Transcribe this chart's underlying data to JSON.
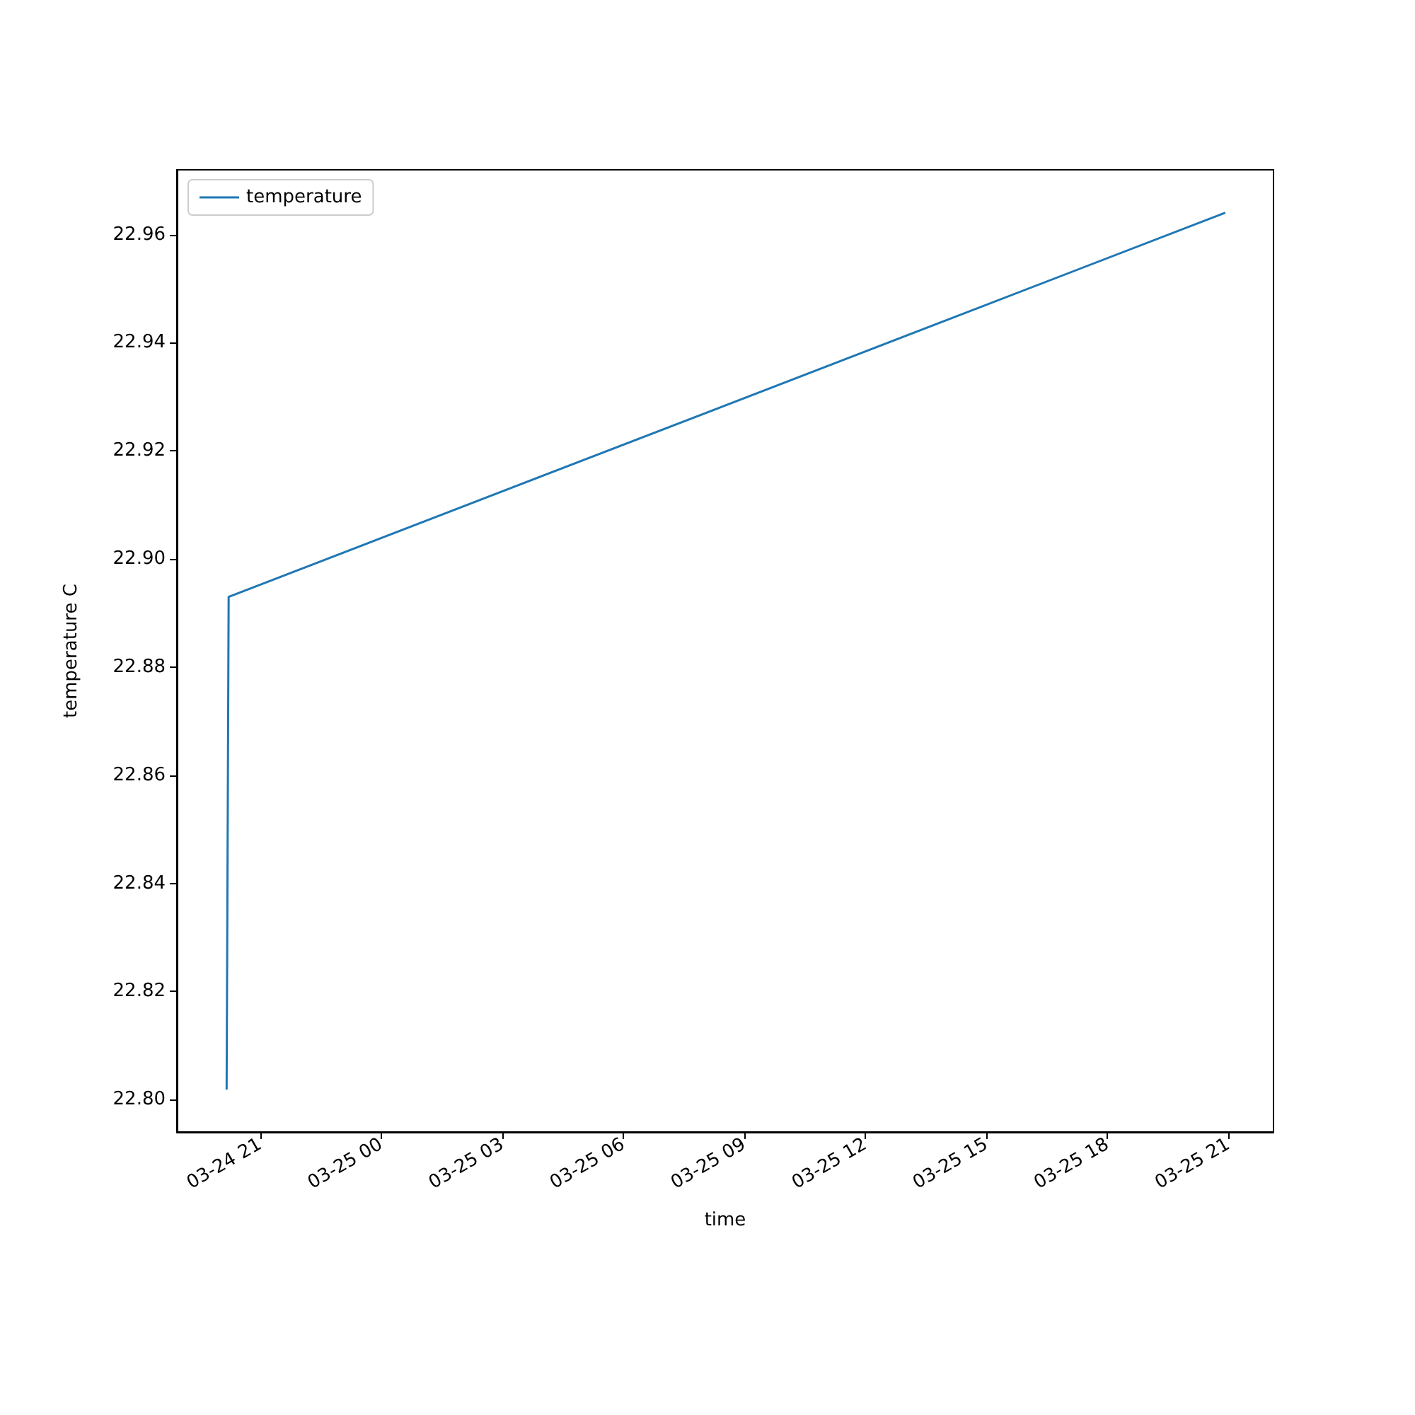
{
  "chart_data": {
    "type": "line",
    "xlabel": "time",
    "ylabel": "temperature C",
    "series": [
      {
        "name": "temperature",
        "color": "#1f77b4",
        "x": [
          "--03-24T20:10",
          "--03-24T20:13",
          "--03-25T20:54"
        ],
        "values": [
          22.802,
          22.893,
          22.964
        ]
      }
    ],
    "xlim": [
      "--03-24T18:56",
      "--03-25T22:07"
    ],
    "xticks": [
      {
        "value": "--03-24T21:00",
        "label": "03-24 21"
      },
      {
        "value": "--03-25T00:00",
        "label": "03-25 00"
      },
      {
        "value": "--03-25T03:00",
        "label": "03-25 03"
      },
      {
        "value": "--03-25T06:00",
        "label": "03-25 06"
      },
      {
        "value": "--03-25T09:00",
        "label": "03-25 09"
      },
      {
        "value": "--03-25T12:00",
        "label": "03-25 12"
      },
      {
        "value": "--03-25T15:00",
        "label": "03-25 15"
      },
      {
        "value": "--03-25T18:00",
        "label": "03-25 18"
      },
      {
        "value": "--03-25T21:00",
        "label": "03-25 21"
      }
    ],
    "ylim": [
      22.794,
      22.972
    ],
    "yticks": [
      {
        "value": 22.8,
        "label": "22.80"
      },
      {
        "value": 22.82,
        "label": "22.82"
      },
      {
        "value": 22.84,
        "label": "22.84"
      },
      {
        "value": 22.86,
        "label": "22.86"
      },
      {
        "value": 22.88,
        "label": "22.88"
      },
      {
        "value": 22.9,
        "label": "22.90"
      },
      {
        "value": 22.92,
        "label": "22.92"
      },
      {
        "value": 22.94,
        "label": "22.94"
      },
      {
        "value": 22.96,
        "label": "22.96"
      }
    ],
    "legend": "top left",
    "grid": false,
    "marker": "none",
    "line_style": "solid"
  }
}
